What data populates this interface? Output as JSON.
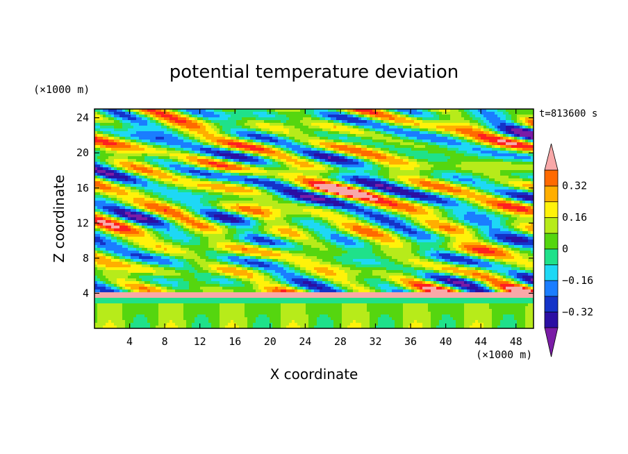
{
  "chart_data": {
    "type": "heatmap",
    "title": "potential temperature deviation",
    "xlabel": "X coordinate",
    "ylabel": "Z coordinate",
    "x_unit": "(×1000 m)",
    "y_unit": "(×1000 m)",
    "time_label": "t=813600 s",
    "xlim": [
      0,
      50
    ],
    "ylim": [
      0,
      25
    ],
    "x_ticks": [
      4,
      8,
      12,
      16,
      20,
      24,
      28,
      32,
      36,
      40,
      44,
      48
    ],
    "y_ticks": [
      4,
      8,
      12,
      16,
      20,
      24
    ],
    "colorbar": {
      "levels": [
        -0.4,
        -0.32,
        -0.24,
        -0.16,
        -0.08,
        0,
        0.08,
        0.16,
        0.24,
        0.32,
        0.4
      ],
      "labeled_ticks": [
        "0.32",
        "0.16",
        "0",
        "−0.16",
        "−0.32"
      ],
      "labeled_values": [
        0.32,
        0.16,
        0,
        -0.16,
        -0.32
      ],
      "colors": [
        "#7a1ca6",
        "#2b0fa3",
        "#1433c8",
        "#1a7dff",
        "#1ed8f5",
        "#1fe18a",
        "#55d60f",
        "#b7eb1a",
        "#fff20a",
        "#ffae00",
        "#ff6a00",
        "#ff2020",
        "#f8a8a8"
      ],
      "extend": "both"
    }
  }
}
